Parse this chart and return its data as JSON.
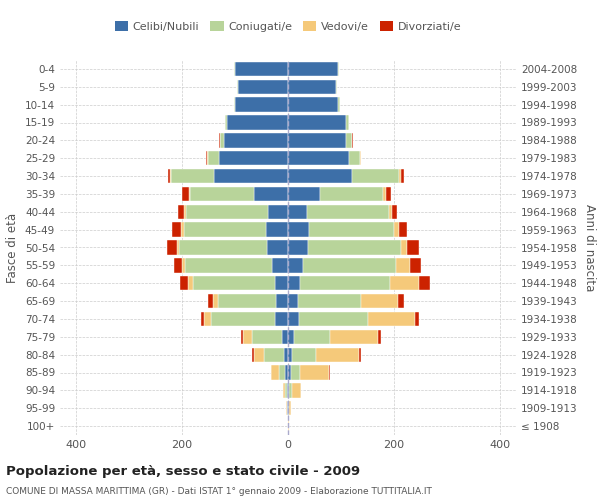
{
  "age_groups": [
    "100+",
    "95-99",
    "90-94",
    "85-89",
    "80-84",
    "75-79",
    "70-74",
    "65-69",
    "60-64",
    "55-59",
    "50-54",
    "45-49",
    "40-44",
    "35-39",
    "30-34",
    "25-29",
    "20-24",
    "15-19",
    "10-14",
    "5-9",
    "0-4"
  ],
  "birth_years": [
    "≤ 1908",
    "1909-1913",
    "1914-1918",
    "1919-1923",
    "1924-1928",
    "1929-1933",
    "1934-1938",
    "1939-1943",
    "1944-1948",
    "1949-1953",
    "1954-1958",
    "1959-1963",
    "1964-1968",
    "1969-1973",
    "1974-1978",
    "1979-1983",
    "1984-1988",
    "1989-1993",
    "1994-1998",
    "1999-2003",
    "2004-2008"
  ],
  "male": {
    "celibi": [
      0,
      1,
      2,
      5,
      8,
      12,
      25,
      22,
      25,
      30,
      40,
      42,
      38,
      65,
      140,
      130,
      120,
      115,
      100,
      95,
      100
    ],
    "coniugati": [
      0,
      1,
      3,
      12,
      38,
      55,
      120,
      110,
      155,
      165,
      165,
      155,
      155,
      120,
      80,
      20,
      8,
      4,
      2,
      1,
      1
    ],
    "vedovi": [
      0,
      1,
      4,
      15,
      18,
      18,
      14,
      10,
      8,
      5,
      5,
      4,
      3,
      2,
      2,
      2,
      1,
      0,
      0,
      0,
      0
    ],
    "divorziati": [
      0,
      0,
      0,
      1,
      3,
      3,
      5,
      8,
      15,
      15,
      18,
      17,
      12,
      12,
      5,
      2,
      1,
      0,
      0,
      0,
      0
    ]
  },
  "female": {
    "nubili": [
      0,
      1,
      2,
      5,
      8,
      12,
      20,
      18,
      22,
      28,
      38,
      40,
      35,
      60,
      120,
      115,
      110,
      110,
      95,
      90,
      95
    ],
    "coniugate": [
      0,
      1,
      5,
      18,
      45,
      68,
      130,
      120,
      170,
      175,
      175,
      160,
      155,
      120,
      90,
      20,
      10,
      5,
      3,
      2,
      1
    ],
    "vedove": [
      1,
      3,
      18,
      55,
      80,
      90,
      90,
      70,
      55,
      28,
      12,
      10,
      6,
      5,
      3,
      2,
      1,
      0,
      0,
      0,
      0
    ],
    "divorziate": [
      0,
      0,
      0,
      1,
      4,
      5,
      8,
      10,
      20,
      20,
      22,
      15,
      10,
      10,
      5,
      1,
      1,
      0,
      0,
      0,
      0
    ]
  },
  "colors": {
    "celibi_nubili": "#3d6fa8",
    "coniugati": "#b8d49a",
    "vedovi": "#f5c97a",
    "divorziati": "#cc2200"
  },
  "xlim": 430,
  "title": "Popolazione per età, sesso e stato civile - 2009",
  "subtitle": "COMUNE DI MASSA MARITTIMA (GR) - Dati ISTAT 1° gennaio 2009 - Elaborazione TUTTITALIA.IT",
  "ylabel": "Fasce di età",
  "ylabel_right": "Anni di nascita",
  "bg_color": "#ffffff",
  "grid_color": "#cccccc"
}
